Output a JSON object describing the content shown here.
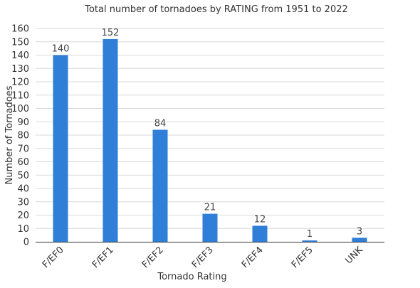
{
  "chart_data": {
    "type": "bar",
    "title": "Total number of tornadoes by RATING from 1951 to 2022",
    "xlabel": "Tornado Rating",
    "ylabel": "Number of Tornadoes",
    "categories": [
      "F/EF0",
      "F/EF1",
      "F/EF2",
      "F/EF3",
      "F/EF4",
      "F/EF5",
      "UNK"
    ],
    "values": [
      140,
      152,
      84,
      21,
      12,
      1,
      3
    ],
    "ylim": [
      0,
      160
    ],
    "yticks": [
      0,
      10,
      20,
      30,
      40,
      50,
      60,
      70,
      80,
      90,
      100,
      110,
      120,
      130,
      140,
      150,
      160
    ],
    "grid": true,
    "legend": "none",
    "bar_color": "#2f7ed8",
    "data_labels": true
  }
}
